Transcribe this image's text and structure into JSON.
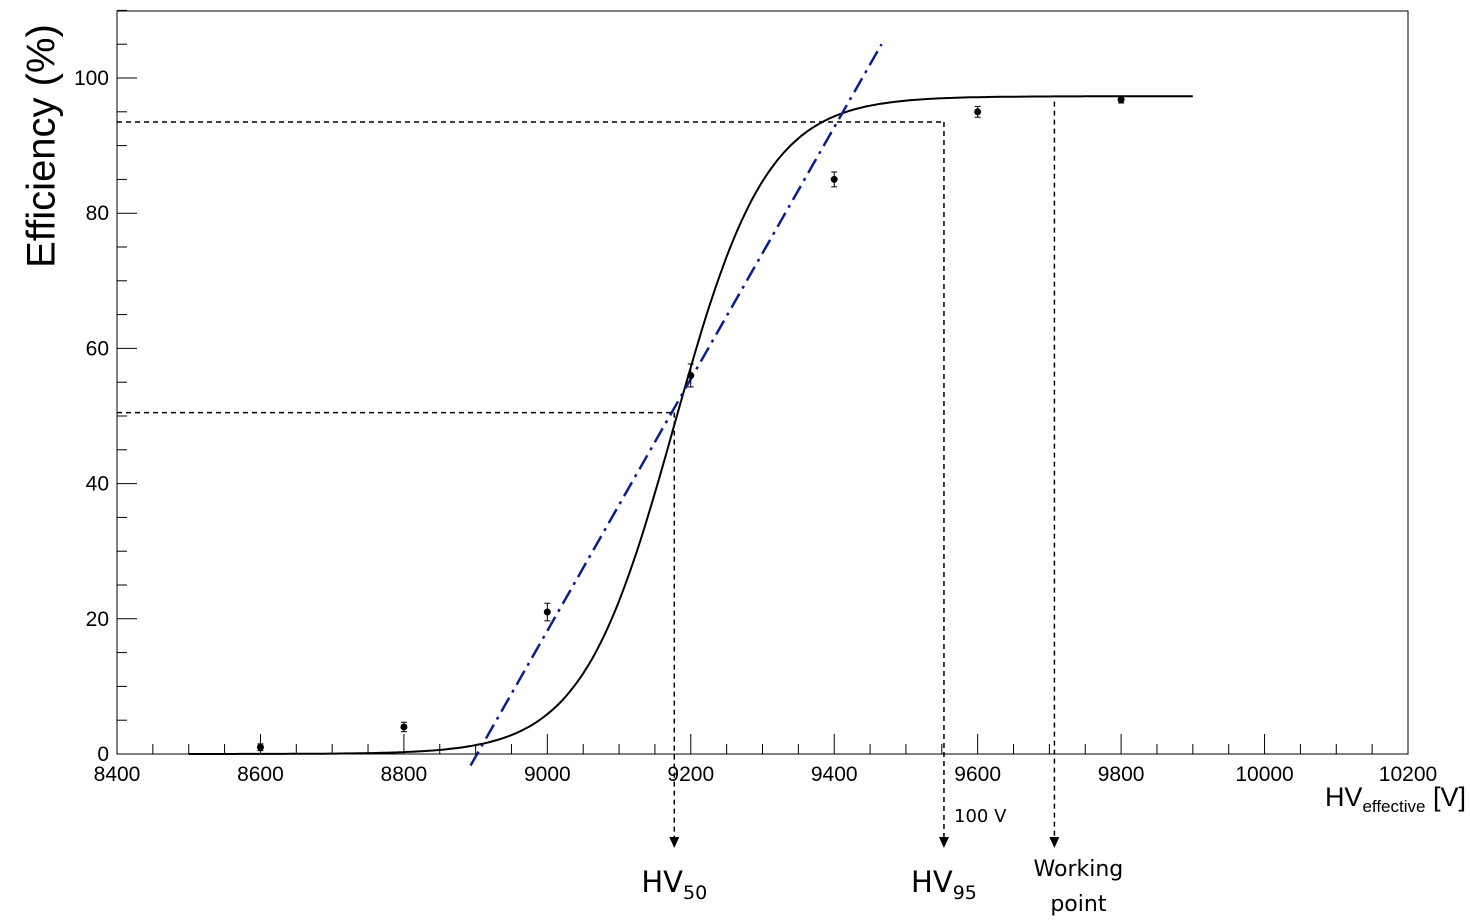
{
  "chart_data": {
    "type": "scatter",
    "ylabel": "Efficiency (%)",
    "xlabel": {
      "main": "HV",
      "sub": "effective",
      "unit": "[V]"
    },
    "xlim": [
      8400,
      10200
    ],
    "ylim": [
      0,
      100
    ],
    "x_ticks": [
      8400,
      8600,
      8800,
      9000,
      9200,
      9400,
      9600,
      9800,
      10000,
      10200
    ],
    "x_tick_labels": [
      "8400",
      "8600",
      "8800",
      "9000",
      "9200",
      "9400",
      "9600",
      "9800",
      "10000",
      "10200"
    ],
    "y_ticks": [
      0,
      20,
      40,
      60,
      80,
      100
    ],
    "y_tick_labels": [
      "0",
      "20",
      "40",
      "60",
      "80",
      "100"
    ],
    "grid": false,
    "series": [
      {
        "role": "measurements",
        "style": "points with error bars",
        "color": "#000000",
        "points": [
          {
            "x": 8600,
            "y": 1.0,
            "err": 0.5
          },
          {
            "x": 8800,
            "y": 4.0,
            "err": 0.7
          },
          {
            "x": 9000,
            "y": 21.0,
            "err": 1.3
          },
          {
            "x": 9200,
            "y": 56.0,
            "err": 1.7
          },
          {
            "x": 9400,
            "y": 85.0,
            "err": 1.1
          },
          {
            "x": 9600,
            "y": 95.0,
            "err": 0.8
          },
          {
            "x": 9800,
            "y": 96.8,
            "err": 0.5
          }
        ]
      },
      {
        "role": "fit",
        "style": "solid sigmoid curve",
        "color": "#000000",
        "x_range": [
          8500,
          9900
        ],
        "plateau": 97.3,
        "hv50": 9177,
        "slope_per_volt": 0.0155
      },
      {
        "role": "tangent",
        "style": "dash-dot line",
        "color": "#0a1e8c",
        "x": [
          8893,
          9466
        ],
        "y": [
          -1.7,
          105
        ]
      }
    ],
    "guides": [
      {
        "type": "horizontal",
        "y": 93.5,
        "x_to": 9553
      },
      {
        "type": "horizontal",
        "y": 50.5,
        "x_to": 9177
      },
      {
        "type": "vertical",
        "x": 9177,
        "y_from": 50.5,
        "label_main": "HV",
        "label_sub": "50"
      },
      {
        "type": "vertical",
        "x": 9553,
        "y_from": 93.5,
        "label_main": "HV",
        "label_sub": "95"
      },
      {
        "type": "vertical",
        "x": 9707,
        "y_from": 96.5,
        "label_line1": "Working",
        "label_line2": "point"
      }
    ],
    "annotations": {
      "offset": "100 V"
    }
  }
}
